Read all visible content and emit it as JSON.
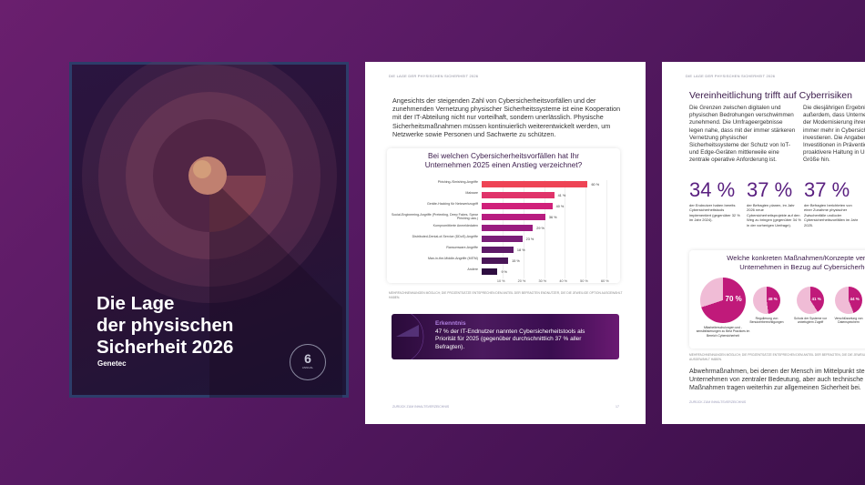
{
  "cover": {
    "title_lines": [
      "Die Lage",
      "der physischen",
      "Sicherheit 2026"
    ],
    "logo": "Genetec",
    "seal": {
      "number": "6",
      "text": "ANNUAL",
      "year": "2026"
    }
  },
  "page2": {
    "header": "DIE LAGE DER PHYSISCHEN SICHERHEIT 2026",
    "intro": "Angesichts der steigenden Zahl von Cybersicherheitsvorfällen und der zunehmenden Vernetzung physischer Sicherheitssysteme ist eine Kooperation mit der IT-Abteilung nicht nur vorteilhaft, sondern unerlässlich. Physische Sicherheitsmaßnahmen müssen kontinuierlich weiterentwickelt werden, um Netzwerke sowie Personen und Sachwerte zu schützen.",
    "note": "MEHRFACHNENNUNGEN MÖGLICH; DIE PROZENTSÄTZE ENTSPRECHEN DEM ANTEIL DER BEFRAGTEN ENDNUTZER, DIE DIE JEWEILIGE OPTION AUSGEWÄHLT HABEN.",
    "insight": {
      "label": "Erkenntnis",
      "text": "47 % der IT-Endnutzer nannten Cybersicherheitstools als Priorität für 2025 (gegenüber durchschnittlich 37 % aller Befragten)."
    },
    "footer": "ZURÜCK ZUM INHALTSVERZEICHNIS",
    "page_number": "17"
  },
  "chart_data": {
    "type": "bar",
    "orientation": "horizontal",
    "title": "Bei welchen Cybersicherheitsvorfällen hat Ihr Unternehmen 2025 einen Anstieg verzeichnet?",
    "categories": [
      "Phishing-/Smishing-Angriffe",
      "Malware",
      "Geräte-Hacking für Netzwerkzugriff",
      "Social-Engineering-Angriffe (Pretexting, Deep Fakes, Spear Phishing usw.)",
      "Kompromittierte Anmeldedaten",
      "Distributed-Denial-of-Service (DDoS)-Angriffe",
      "Ransomware-Angriffe",
      "Man-in-the-Middle-Angriffe (MITM)",
      "Andere"
    ],
    "values": [
      60,
      41,
      40,
      36,
      29,
      23,
      18,
      15,
      9
    ],
    "value_labels": [
      "60 %",
      "41 %",
      "40 %",
      "36 %",
      "29 %",
      "23 %",
      "18 %",
      "15 %",
      "9 %"
    ],
    "xticks": [
      "10 %",
      "20 %",
      "30 %",
      "40 %",
      "50 %",
      "60 %"
    ],
    "xlim": [
      0,
      60
    ],
    "colors": [
      "#ee4455",
      "#e0336a",
      "#d0207a",
      "#b81c80",
      "#9a1c80",
      "#7a1e78",
      "#5e1a68",
      "#4a1658",
      "#2e0e40"
    ],
    "grid": true
  },
  "page3": {
    "header": "DIE LAGE DER PHYSISCHEN SICHERHEIT 2026",
    "title": "Vereinheitlichung trifft auf Cyberrisiken",
    "col1": "Die Grenzen zwischen digitalen und physischen Bedrohungen verschwimmen zunehmend. Die Umfrageergebnisse legen nahe, dass mit der immer stärkeren Vernetzung physischer Sicherheitssysteme der Schutz von IoT- und Edge-Geräten mittlerweile eine zentrale operative Anforderung ist.",
    "col2": "Die diesjährigen Ergebnisse zeigen außerdem, dass Unternehmen im Zuge der Modernisierung ihrer Umgebungen immer mehr in Cybersicherheitstools investieren. Die Angaben deuten auf Investitionen in Prävention und eine proaktivere Haltung in Unternehmen jeder Größe hin.",
    "stats": [
      {
        "value": "34 %",
        "text": "der Endnutzer haben bereits Cybersicherheitstools implementiert (gegenüber 32 % im Jahr 2024)."
      },
      {
        "value": "37 %",
        "text": "der Befragten planen, im Jahr 2026 neue Cybersicherheitsprojekte auf den Weg zu bringen (gegenüber 34 % in der vorherigen Umfrage)."
      },
      {
        "value": "37 %",
        "text": "der Befragten berichteten von einer Zunahme physischer Zwischenfälle und/oder Cybersicherheitsvorfällen im Jahr 2025."
      }
    ],
    "pie_title": "Welche konkreten Maßnahmen/Konzepte verfolgt Ihr Unternehmen in Bezug auf Cybersicherheit?",
    "pies": [
      {
        "value": 70,
        "label": "70 %",
        "text": "Mitarbeiterschulungen und -sensibilisierungen zu Best Practices im Bereich Cybersicherheit"
      },
      {
        "value": 48,
        "label": "48 %",
        "text": "Regulierung von Benutzerberechtigungen"
      },
      {
        "value": 41,
        "label": "41 %",
        "text": "Schutz der Systeme vor unbefugtem Zugriff"
      },
      {
        "value": 44,
        "label": "44 %",
        "text": "Verschlüsselung von Datenspeichern"
      }
    ],
    "note": "MEHRFACHNENNUNGEN MÖGLICH; DIE PROZENTSÄTZE ENTSPRECHEN DEM ANTEIL DER BEFRAGTEN, DIE DIE JEWEILIGE OPTION AUSGEWÄHLT HABEN.",
    "closing": "Abwehrmaßnahmen, bei denen der Mensch im Mittelpunkt steht, sind für Unternehmen von zentraler Bedeutung, aber auch technische Maßnahmen tragen weiterhin zur allgemeinen Sicherheit bei.",
    "footer": "ZURÜCK ZUM INHALTSVERZEICHNIS"
  }
}
